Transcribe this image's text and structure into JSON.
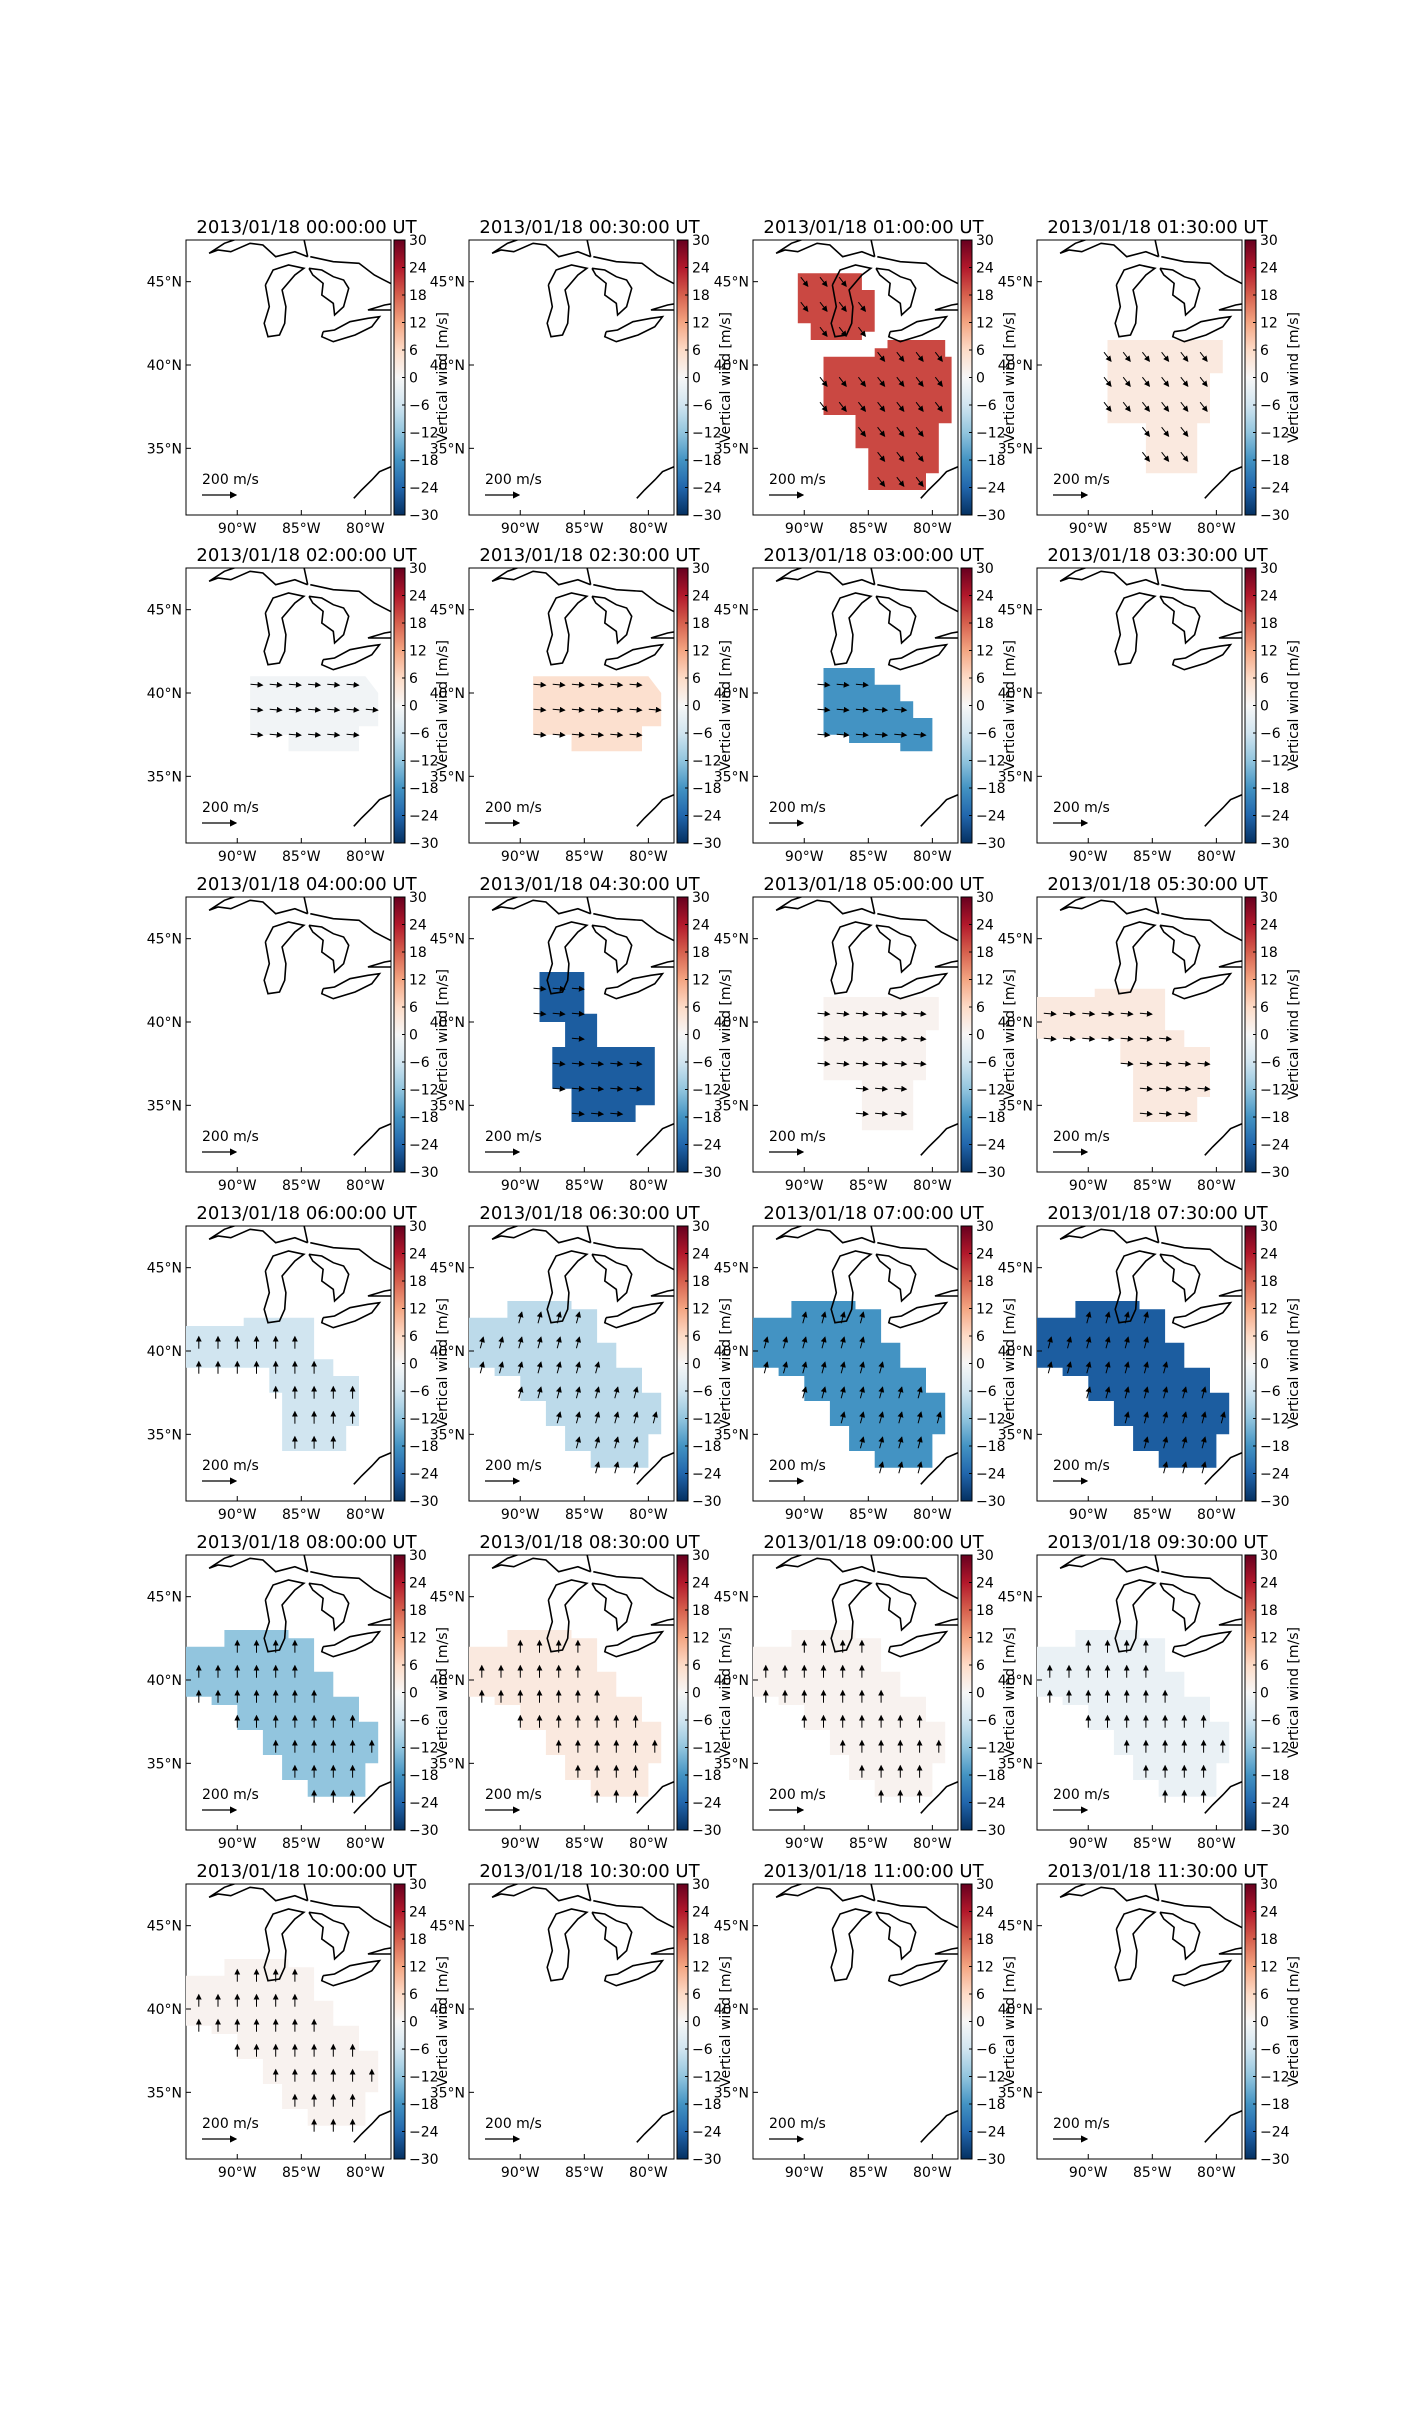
{
  "chart_data": {
    "type": "heatmap",
    "layout": {
      "rows": 6,
      "cols": 4
    },
    "colorbar": {
      "label": "Vertical wind [m/s]",
      "ticks": [
        30,
        24,
        18,
        12,
        6,
        0,
        -6,
        -12,
        -18,
        -24,
        -30
      ],
      "range": [
        -30,
        30
      ],
      "colormap": "RdBu_r"
    },
    "axes": {
      "x_tick_labels": [
        "90°W",
        "85°W",
        "80°W"
      ],
      "y_tick_labels": [
        "45°N",
        "40°N",
        "35°N"
      ]
    },
    "reference_arrow": {
      "magnitude": 200,
      "unit": "m/s",
      "label_value": "200",
      "label_unit": "m/s"
    },
    "panels": [
      {
        "title": "2013/01/18 00:00:00 UT",
        "value": null,
        "region": null,
        "wind": null
      },
      {
        "title": "2013/01/18 00:30:00 UT",
        "value": null,
        "region": null,
        "wind": null
      },
      {
        "title": "2013/01/18 01:00:00 UT",
        "value": 20,
        "region": "split",
        "wind": "south-east"
      },
      {
        "title": "2013/01/18 01:30:00 UT",
        "value": 3,
        "region": "mid",
        "wind": "south-east"
      },
      {
        "title": "2013/01/18 02:00:00 UT",
        "value": -1,
        "region": "band",
        "wind": "east"
      },
      {
        "title": "2013/01/18 02:30:00 UT",
        "value": 5,
        "region": "band",
        "wind": "east"
      },
      {
        "title": "2013/01/18 03:00:00 UT",
        "value": -18,
        "region": "band2",
        "wind": "east"
      },
      {
        "title": "2013/01/18 03:30:00 UT",
        "value": null,
        "region": null,
        "wind": null
      },
      {
        "title": "2013/01/18 04:00:00 UT",
        "value": null,
        "region": null,
        "wind": null
      },
      {
        "title": "2013/01/18 04:30:00 UT",
        "value": -25,
        "region": "dark",
        "wind": "east"
      },
      {
        "title": "2013/01/18 05:00:00 UT",
        "value": 1,
        "region": "mid",
        "wind": "east"
      },
      {
        "title": "2013/01/18 05:30:00 UT",
        "value": 3,
        "region": "west",
        "wind": "east"
      },
      {
        "title": "2013/01/18 06:00:00 UT",
        "value": -6,
        "region": "west",
        "wind": "north"
      },
      {
        "title": "2013/01/18 06:30:00 UT",
        "value": -8,
        "region": "big",
        "wind": "north-east"
      },
      {
        "title": "2013/01/18 07:00:00 UT",
        "value": -18,
        "region": "big",
        "wind": "north-east"
      },
      {
        "title": "2013/01/18 07:30:00 UT",
        "value": -25,
        "region": "big",
        "wind": "north-east"
      },
      {
        "title": "2013/01/18 08:00:00 UT",
        "value": -12,
        "region": "big",
        "wind": "north"
      },
      {
        "title": "2013/01/18 08:30:00 UT",
        "value": 3,
        "region": "big",
        "wind": "north"
      },
      {
        "title": "2013/01/18 09:00:00 UT",
        "value": 1,
        "region": "big",
        "wind": "north"
      },
      {
        "title": "2013/01/18 09:30:00 UT",
        "value": -2,
        "region": "big",
        "wind": "north"
      },
      {
        "title": "2013/01/18 10:00:00 UT",
        "value": 1,
        "region": "big",
        "wind": "north"
      },
      {
        "title": "2013/01/18 10:30:00 UT",
        "value": null,
        "region": null,
        "wind": null
      },
      {
        "title": "2013/01/18 11:00:00 UT",
        "value": null,
        "region": null,
        "wind": null
      },
      {
        "title": "2013/01/18 11:30:00 UT",
        "value": null,
        "region": null,
        "wind": null
      }
    ]
  },
  "colors": {
    "scale": [
      "#053061",
      "#2166ac",
      "#4393c3",
      "#92c5de",
      "#d1e5f0",
      "#f7f7f7",
      "#fddbc7",
      "#f4a582",
      "#d6604d",
      "#b2182b",
      "#67001f"
    ]
  }
}
